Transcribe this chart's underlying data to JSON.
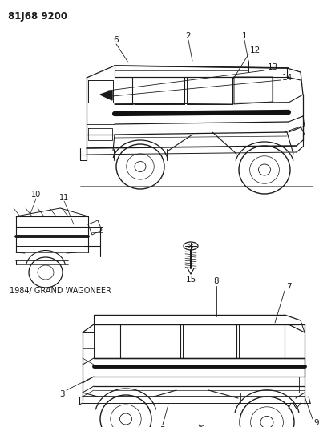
{
  "title": "81J68 9200",
  "subtitle": "1984/ GRAND WAGONEER",
  "bg_color": "#ffffff",
  "line_color": "#1a1a1a",
  "title_fontsize": 8.5,
  "subtitle_fontsize": 7,
  "label_fontsize": 7.5,
  "fig_width": 3.98,
  "fig_height": 5.33,
  "dpi": 100
}
